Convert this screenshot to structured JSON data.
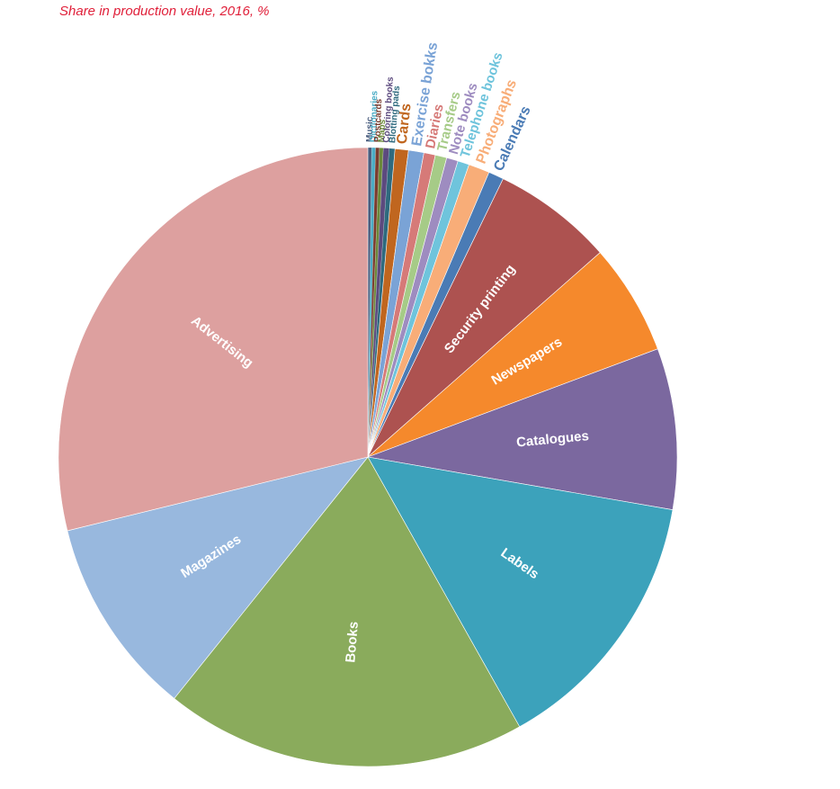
{
  "chart_data": {
    "type": "pie",
    "subtitle": "Share in production value, 2016, %",
    "start": "12 o'clock",
    "direction": "clockwise",
    "slices": [
      {
        "label": "Music",
        "value": 0.2,
        "color": "#4a5d7e"
      },
      {
        "label": "Dictionaries",
        "value": 0.2,
        "color": "#4aacc5"
      },
      {
        "label": "Postcards",
        "value": 0.2,
        "color": "#7a3b2e"
      },
      {
        "label": "Maps",
        "value": 0.2,
        "color": "#6b8a3a"
      },
      {
        "label": "Coloring books",
        "value": 0.3,
        "color": "#5c4a7e"
      },
      {
        "label": "Blotting pads",
        "value": 0.3,
        "color": "#2e6a7e"
      },
      {
        "label": "Cards",
        "value": 0.7,
        "color": "#c0661f"
      },
      {
        "label": "Exercise bokks",
        "value": 0.8,
        "color": "#7aa3d6"
      },
      {
        "label": "Diaries",
        "value": 0.6,
        "color": "#d67a78"
      },
      {
        "label": "Transfers",
        "value": 0.6,
        "color": "#a6cb87"
      },
      {
        "label": "Note books",
        "value": 0.6,
        "color": "#9e8cc0"
      },
      {
        "label": "Telephone books",
        "value": 0.6,
        "color": "#6fc4dc"
      },
      {
        "label": "Photographs",
        "value": 1.1,
        "color": "#f8ad78"
      },
      {
        "label": "Calendars",
        "value": 0.8,
        "color": "#4a7bb5"
      },
      {
        "label": "Security printing",
        "value": 6.3,
        "color": "#ad5250"
      },
      {
        "label": "Newspapers",
        "value": 5.8,
        "color": "#f5892c"
      },
      {
        "label": "Catalogues",
        "value": 8.4,
        "color": "#7b689f"
      },
      {
        "label": "Labels",
        "value": 14.1,
        "color": "#3ca2bb"
      },
      {
        "label": "Books",
        "value": 18.9,
        "color": "#8aab5c"
      },
      {
        "label": "Magazines",
        "value": 10.4,
        "color": "#98b8de"
      },
      {
        "label": "Advertising",
        "value": 28.8,
        "color": "#dda09f"
      }
    ]
  }
}
